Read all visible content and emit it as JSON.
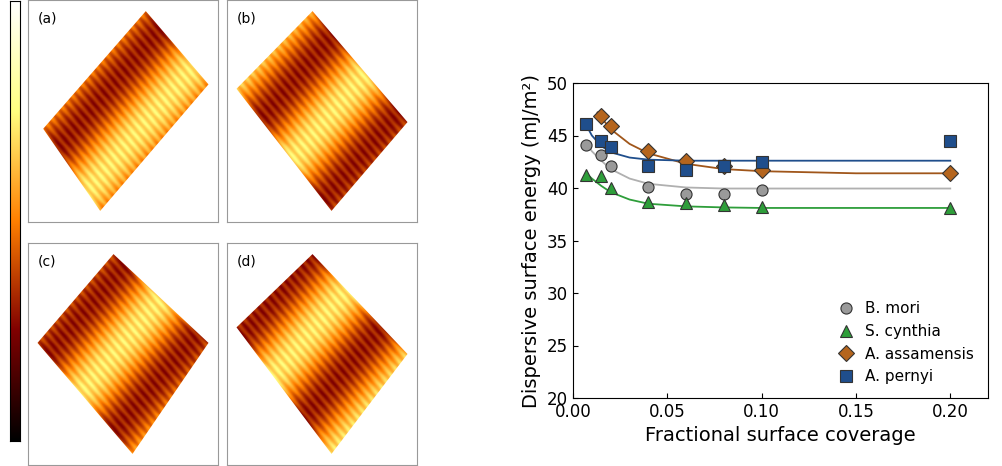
{
  "chart_data": {
    "type": "scatter",
    "x_label": "Fractional surface coverage",
    "y_label": "Dispersive surface energy (mJ/m²)",
    "xlim": [
      0,
      0.22
    ],
    "xticks": [
      {
        "value": 0,
        "label": "0.00"
      },
      {
        "value": 0.05,
        "label": "0.05"
      },
      {
        "value": 0.1,
        "label": "0.10"
      },
      {
        "value": 0.15,
        "label": "0.15"
      },
      {
        "value": 0.2,
        "label": "0.20"
      }
    ],
    "ylim": [
      20,
      50
    ],
    "yticks": [
      20,
      25,
      30,
      35,
      40,
      45,
      50
    ],
    "grid": false,
    "legend": "lower right",
    "series": [
      {
        "name": "B. mori",
        "color": "#9a9a9a",
        "marker": "circle",
        "x": [
          0.007,
          0.015,
          0.02,
          0.04,
          0.06,
          0.08,
          0.1
        ],
        "values": [
          44.1,
          43.1,
          42.1,
          40.1,
          39.4,
          39.4,
          39.8
        ],
        "fit": {
          "color": "#b0b0b0",
          "x": [
            0.007,
            0.01,
            0.015,
            0.02,
            0.03,
            0.04,
            0.06,
            0.08,
            0.1,
            0.15,
            0.2
          ],
          "values": [
            44.3,
            43.5,
            42.6,
            41.8,
            40.9,
            40.4,
            40.05,
            39.95,
            39.95,
            39.95,
            39.95
          ]
        }
      },
      {
        "name": "S. cynthia",
        "color": "#2e9e3a",
        "marker": "triangle",
        "x": [
          0.007,
          0.015,
          0.02,
          0.04,
          0.06,
          0.08,
          0.1,
          0.2
        ],
        "values": [
          41.2,
          41.1,
          40.0,
          38.7,
          38.6,
          38.4,
          38.2,
          38.1
        ],
        "fit": {
          "color": "#2e9e3a",
          "x": [
            0.007,
            0.01,
            0.015,
            0.02,
            0.03,
            0.04,
            0.06,
            0.08,
            0.1,
            0.15,
            0.2
          ],
          "values": [
            41.4,
            40.9,
            40.2,
            39.6,
            38.9,
            38.5,
            38.25,
            38.15,
            38.1,
            38.1,
            38.1
          ]
        }
      },
      {
        "name": "A. assamensis",
        "color": "#b5651d",
        "marker": "diamond",
        "x": [
          0.015,
          0.02,
          0.04,
          0.06,
          0.08,
          0.1,
          0.2
        ],
        "values": [
          46.9,
          45.9,
          43.5,
          42.6,
          42.1,
          41.7,
          41.4
        ],
        "fit": {
          "color": "#a0561a",
          "x": [
            0.013,
            0.015,
            0.02,
            0.03,
            0.04,
            0.06,
            0.08,
            0.1,
            0.15,
            0.2
          ],
          "values": [
            47.2,
            46.7,
            45.6,
            44.2,
            43.3,
            42.3,
            41.8,
            41.6,
            41.4,
            41.4
          ]
        }
      },
      {
        "name": "A. pernyi",
        "color": "#1f4e8c",
        "marker": "square",
        "x": [
          0.007,
          0.015,
          0.02,
          0.04,
          0.06,
          0.08,
          0.1,
          0.2
        ],
        "values": [
          46.1,
          44.5,
          43.9,
          42.1,
          41.7,
          42.1,
          42.5,
          44.5
        ],
        "fit": {
          "color": "#1f4e8c",
          "x": [
            0.007,
            0.01,
            0.015,
            0.02,
            0.03,
            0.04,
            0.06,
            0.08,
            0.1,
            0.15,
            0.2
          ],
          "values": [
            46.0,
            45.0,
            44.0,
            43.4,
            42.9,
            42.7,
            42.6,
            42.6,
            42.6,
            42.6,
            42.6
          ]
        }
      }
    ]
  },
  "image_panels": {
    "labels": [
      "(a)",
      "(b)",
      "(c)",
      "(d)"
    ]
  }
}
